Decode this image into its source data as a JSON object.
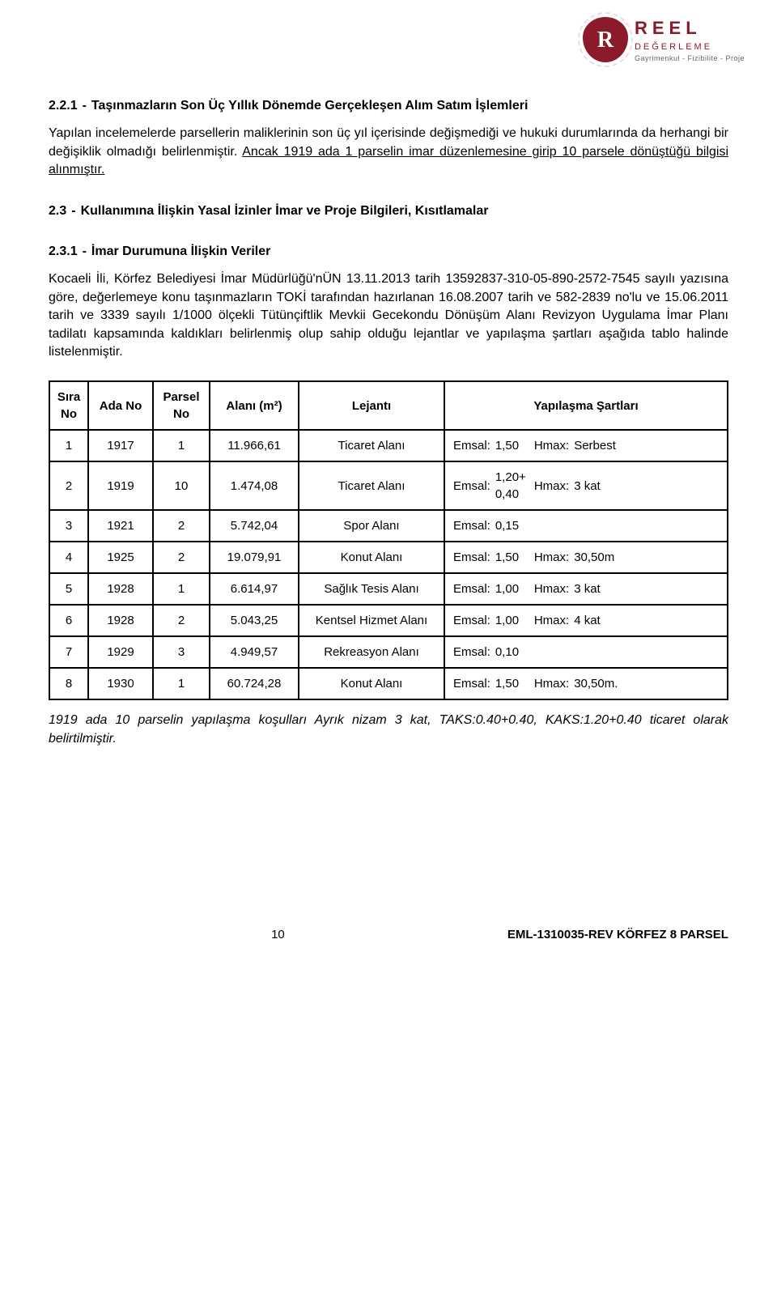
{
  "logo": {
    "title": "REEL",
    "sub1": "DEĞERLEME",
    "sub2": "Gayrimenkul - Fizibilite - Proje"
  },
  "sections": {
    "s221_num": "2.2.1",
    "s221_sep": "-",
    "s221_title": "Taşınmazların Son Üç Yıllık Dönemde Gerçekleşen Alım Satım İşlemleri",
    "s221_para_a": "Yapılan incelemelerde parsellerin maliklerinin son üç yıl içerisinde değişmediği ve hukuki durumlarında da herhangi bir değişiklik olmadığı belirlenmiştir. ",
    "s221_para_b": "Ancak 1919 ada 1 parselin imar düzenlemesine girip 10 parsele dönüştüğü bilgisi alınmıştır.",
    "s23_num": "2.3",
    "s23_sep": "-",
    "s23_title": "Kullanımına İlişkin Yasal İzinler İmar ve Proje Bilgileri, Kısıtlamalar",
    "s231_num": "2.3.1",
    "s231_sep": "-",
    "s231_title": "İmar Durumuna İlişkin Veriler",
    "s231_para": "Kocaeli İli, Körfez Belediyesi İmar Müdürlüğü'nÜN 13.11.2013 tarih 13592837-310-05-890-2572-7545 sayılı yazısına göre, değerlemeye konu taşınmazların TOKİ tarafından hazırlanan 16.08.2007 tarih ve 582-2839 no'lu ve 15.06.2011 tarih ve 3339 sayılı 1/1000 ölçekli Tütünçiftlik Mevkii Gecekondu Dönüşüm Alanı Revizyon Uygulama İmar Planı tadilatı kapsamında kaldıkları belirlenmiş olup sahip olduğu lejantlar ve yapılaşma şartları aşağıda tablo halinde listelenmiştir."
  },
  "table": {
    "headers": {
      "sira": "Sıra No",
      "ada": "Ada No",
      "parsel": "Parsel No",
      "alan": "Alanı (m²)",
      "lejant": "Lejantı",
      "yap": "Yapılaşma Şartları"
    },
    "labels": {
      "emsal": "Emsal:",
      "hmax": "Hmax:"
    },
    "rows": [
      {
        "sira": "1",
        "ada": "1917",
        "parsel": "1",
        "alan": "11.966,61",
        "lejant": "Ticaret Alanı",
        "emsal": "1,50",
        "hmax": "Serbest"
      },
      {
        "sira": "2",
        "ada": "1919",
        "parsel": "10",
        "alan": "1.474,08",
        "lejant": "Ticaret Alanı",
        "emsal": "1,20+\n0,40",
        "hmax": "3 kat"
      },
      {
        "sira": "3",
        "ada": "1921",
        "parsel": "2",
        "alan": "5.742,04",
        "lejant": "Spor Alanı",
        "emsal": "0,15",
        "hmax": ""
      },
      {
        "sira": "4",
        "ada": "1925",
        "parsel": "2",
        "alan": "19.079,91",
        "lejant": "Konut Alanı",
        "emsal": "1,50",
        "hmax": "30,50m"
      },
      {
        "sira": "5",
        "ada": "1928",
        "parsel": "1",
        "alan": "6.614,97",
        "lejant": "Sağlık Tesis Alanı",
        "emsal": "1,00",
        "hmax": "3 kat"
      },
      {
        "sira": "6",
        "ada": "1928",
        "parsel": "2",
        "alan": "5.043,25",
        "lejant": "Kentsel Hizmet Alanı",
        "emsal": "1,00",
        "hmax": "4 kat"
      },
      {
        "sira": "7",
        "ada": "1929",
        "parsel": "3",
        "alan": "4.949,57",
        "lejant": "Rekreasyon Alanı",
        "emsal": "0,10",
        "hmax": ""
      },
      {
        "sira": "8",
        "ada": "1930",
        "parsel": "1",
        "alan": "60.724,28",
        "lejant": "Konut Alanı",
        "emsal": "1,50",
        "hmax": "30,50m."
      }
    ]
  },
  "note": "1919 ada 10 parselin yapılaşma koşulları Ayrık nizam 3 kat, TAKS:0.40+0.40, KAKS:1.20+0.40 ticaret olarak belirtilmiştir.",
  "footer": {
    "page": "10",
    "ref": "EML-1310035-REV KÖRFEZ 8 PARSEL"
  },
  "colors": {
    "brand": "#8b1a2b",
    "text": "#000000",
    "bg": "#ffffff"
  }
}
